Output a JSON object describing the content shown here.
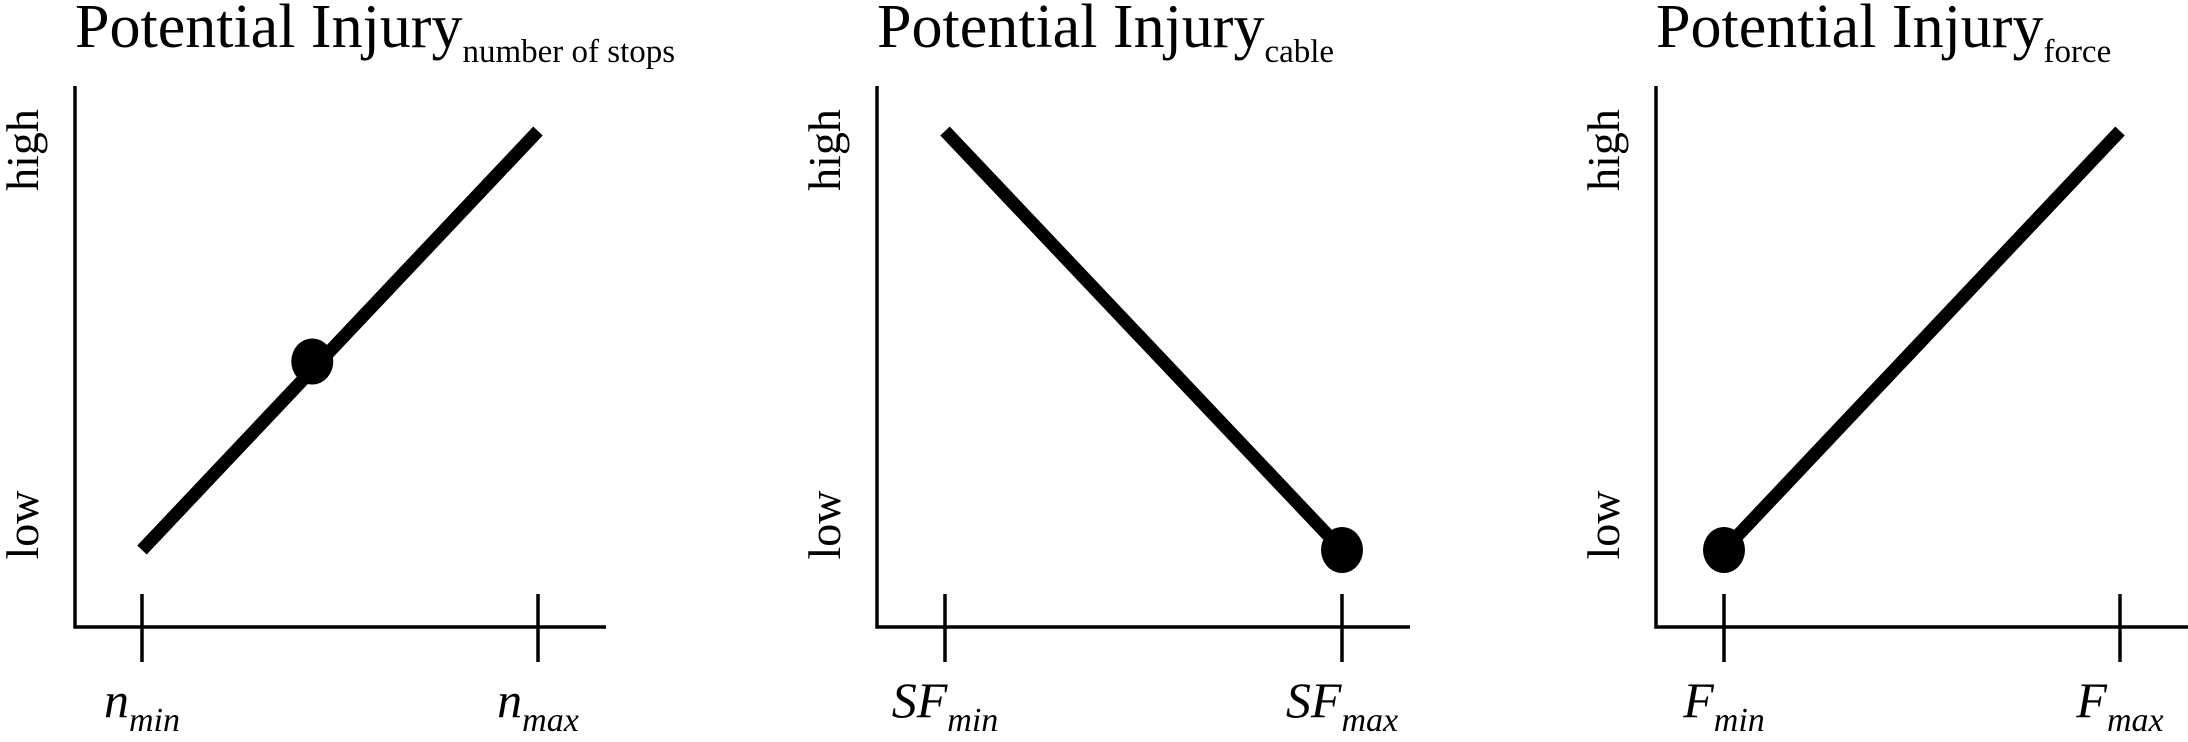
{
  "chart_data": [
    {
      "type": "line",
      "title": "Potential Injury",
      "title_subscript": "number of stops",
      "ylabel_ticks": [
        "low",
        "high"
      ],
      "x_ticks": [
        {
          "base": "n",
          "sub": "min"
        },
        {
          "base": "n",
          "sub": "max"
        }
      ],
      "xlim": [
        0,
        1
      ],
      "ylim": [
        0,
        1
      ],
      "series": [
        {
          "x": [
            0,
            1
          ],
          "y": [
            0,
            1
          ]
        }
      ],
      "marker": {
        "x": 0.43,
        "y": 0.45
      }
    },
    {
      "type": "line",
      "title": "Potential Injury",
      "title_subscript": "cable",
      "ylabel_ticks": [
        "low",
        "high"
      ],
      "x_ticks": [
        {
          "base": "SF",
          "sub": "min"
        },
        {
          "base": "SF",
          "sub": "max"
        }
      ],
      "xlim": [
        0,
        1
      ],
      "ylim": [
        0,
        1
      ],
      "series": [
        {
          "x": [
            0,
            1
          ],
          "y": [
            1,
            0
          ]
        }
      ],
      "marker": {
        "x": 1,
        "y": 0
      }
    },
    {
      "type": "line",
      "title": "Potential Injury",
      "title_subscript": "force",
      "ylabel_ticks": [
        "low",
        "high"
      ],
      "x_ticks": [
        {
          "base": "F",
          "sub": "min"
        },
        {
          "base": "F",
          "sub": "max"
        }
      ],
      "xlim": [
        0,
        1
      ],
      "ylim": [
        0,
        1
      ],
      "series": [
        {
          "x": [
            0,
            1
          ],
          "y": [
            0,
            1
          ]
        }
      ],
      "marker": {
        "x": 0,
        "y": 0
      }
    }
  ]
}
